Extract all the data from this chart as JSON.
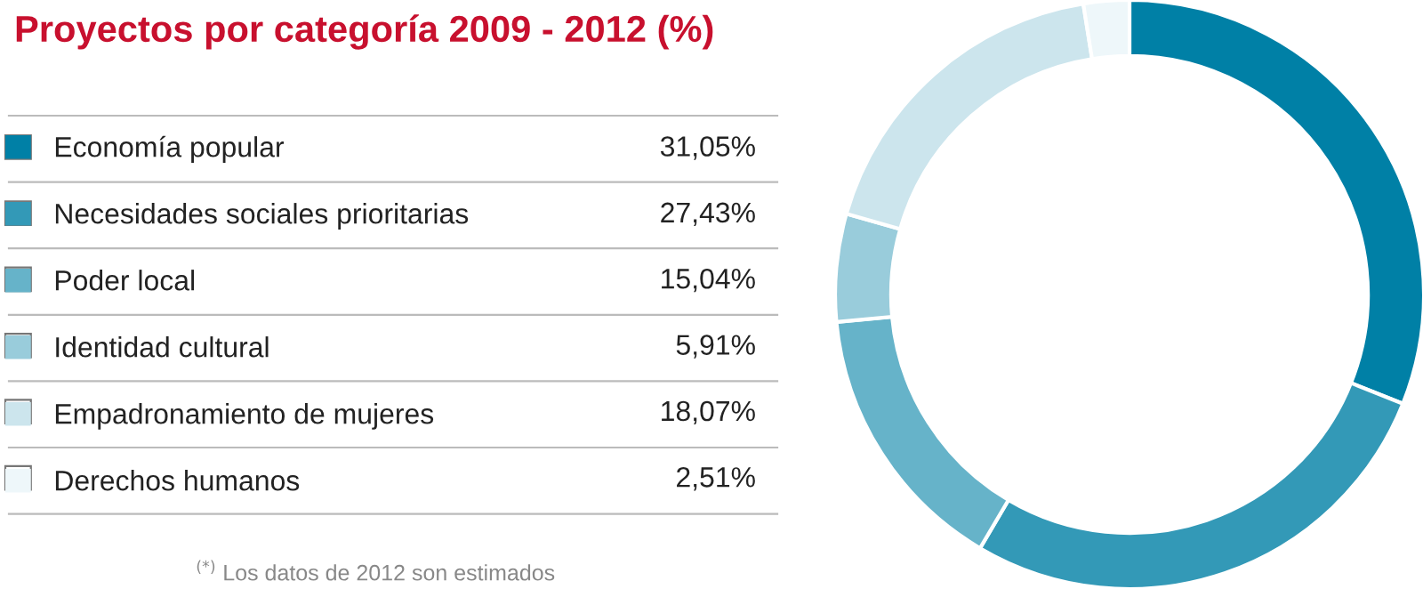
{
  "chart_data": {
    "type": "donut",
    "title": "Proyectos por categoría 2009 - 2012 (%)",
    "categories": [
      "Economía popular",
      "Necesidades sociales prioritarias",
      "Poder local",
      "Identidad cultural",
      "Empadronamiento de mujeres",
      "Derechos humanos"
    ],
    "values": [
      31.05,
      27.43,
      15.04,
      5.91,
      18.07,
      2.51
    ],
    "value_labels": [
      "31,05%",
      "27,43%",
      "15,04%",
      "5,91%",
      "18,07%",
      "2,51%"
    ],
    "colors": [
      "#0080a6",
      "#3399b7",
      "#66b3c9",
      "#99ccdb",
      "#cce5ed",
      "#eef7fa"
    ],
    "legend": "left",
    "annotations": [
      "$^{(*)}$ Los datos de 2012 son estimados"
    ]
  }
}
